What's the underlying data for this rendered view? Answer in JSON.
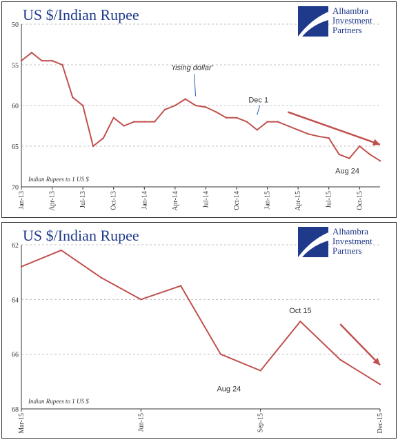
{
  "charts": [
    {
      "title": "US $/Indian Rupee",
      "source_label": "Indian Rupees to 1 US $",
      "logo": {
        "line1": "Alhambra",
        "line2": "Investment",
        "line3": "Partners"
      },
      "annotations": {
        "rising_dollar": "'rising dollar'",
        "dec1": "Dec 1",
        "aug24": "Aug 24"
      }
    },
    {
      "title": "US $/Indian Rupee",
      "source_label": "Indian Rupees to 1 US $",
      "logo": {
        "line1": "Alhambra",
        "line2": "Investment",
        "line3": "Partners"
      },
      "annotations": {
        "oct15": "Oct 15",
        "aug24": "Aug 24"
      }
    }
  ],
  "colors": {
    "series": "#c0504d",
    "title": "#1f3a8a",
    "grid": "#b0b0b0",
    "arrow": "#c0504d"
  },
  "chart_data": [
    {
      "type": "line",
      "title": "US $/Indian Rupee",
      "ylabel": "Indian Rupees to 1 US $",
      "ylim": [
        70,
        50
      ],
      "y_axis_inverted": true,
      "yticks": [
        50,
        55,
        60,
        65,
        70
      ],
      "xtick_labels": [
        "Jan-13",
        "Apr-13",
        "Jul-13",
        "Oct-13",
        "Jan-14",
        "Apr-14",
        "Jul-14",
        "Oct-14",
        "Jan-15",
        "Apr-15",
        "Jul-15",
        "Oct-15"
      ],
      "grid": "horizontal-dashed",
      "series": [
        {
          "x": [
            "Jan-13",
            "Feb-13",
            "Mar-13",
            "Apr-13",
            "May-13",
            "Jun-13",
            "Jul-13",
            "Aug-13",
            "Sep-13",
            "Oct-13",
            "Nov-13",
            "Dec-13",
            "Jan-14",
            "Feb-14",
            "Mar-14",
            "Apr-14",
            "May-14",
            "Jun-14",
            "Jul-14",
            "Aug-14",
            "Sep-14",
            "Oct-14",
            "Nov-14",
            "Dec-14",
            "Jan-15",
            "Feb-15",
            "Mar-15",
            "Apr-15",
            "May-15",
            "Jun-15",
            "Jul-15",
            "Aug-15",
            "Sep-15",
            "Oct-15",
            "Nov-15",
            "Dec-15"
          ],
          "values": [
            54.5,
            53.5,
            54.5,
            54.5,
            55.0,
            59.0,
            60.0,
            65.0,
            64.0,
            61.5,
            62.5,
            62.0,
            62.0,
            62.0,
            60.5,
            60.0,
            59.2,
            60.0,
            60.2,
            60.8,
            61.5,
            61.5,
            62.0,
            63.0,
            62.0,
            62.0,
            62.5,
            63.0,
            63.5,
            63.8,
            64.0,
            66.0,
            66.5,
            65.0,
            66.0,
            66.8
          ]
        }
      ],
      "annotations": [
        {
          "text": "'rising dollar'",
          "x": "Jun-14",
          "y": 59.2
        },
        {
          "text": "Dec 1",
          "x": "Dec-14",
          "y": 61.5
        },
        {
          "text": "Aug 24",
          "x": "Aug-15",
          "y": 66.5
        }
      ],
      "trend_arrow": {
        "from": {
          "x": "Mar-15",
          "y": 60.8
        },
        "to": {
          "x": "Dec-15",
          "y": 64.8
        }
      }
    },
    {
      "type": "line",
      "title": "US $/Indian Rupee",
      "ylabel": "Indian Rupees to 1 US $",
      "ylim": [
        68,
        62
      ],
      "y_axis_inverted": true,
      "yticks": [
        62,
        64,
        66,
        68
      ],
      "xtick_labels": [
        "Mar-15",
        "Jun-15",
        "Sep-15",
        "Dec-15"
      ],
      "grid": "horizontal-dashed",
      "series": [
        {
          "x": [
            "Mar-15",
            "Apr-15",
            "May-15",
            "Jun-15",
            "Jul-15",
            "Aug-15",
            "Sep-15",
            "Oct-15",
            "Nov-15",
            "Dec-15"
          ],
          "values": [
            62.8,
            62.2,
            63.2,
            64.0,
            63.5,
            66.0,
            66.6,
            64.8,
            66.2,
            67.1
          ]
        }
      ],
      "annotations": [
        {
          "text": "Oct 15",
          "x": "Oct-15",
          "y": 64.8
        },
        {
          "text": "Aug 24",
          "x": "Aug-15",
          "y": 66.8
        }
      ],
      "trend_arrow": {
        "from": {
          "x": "Nov-15",
          "y": 64.9
        },
        "to": {
          "x": "Dec-15",
          "y": 66.4
        }
      }
    }
  ]
}
